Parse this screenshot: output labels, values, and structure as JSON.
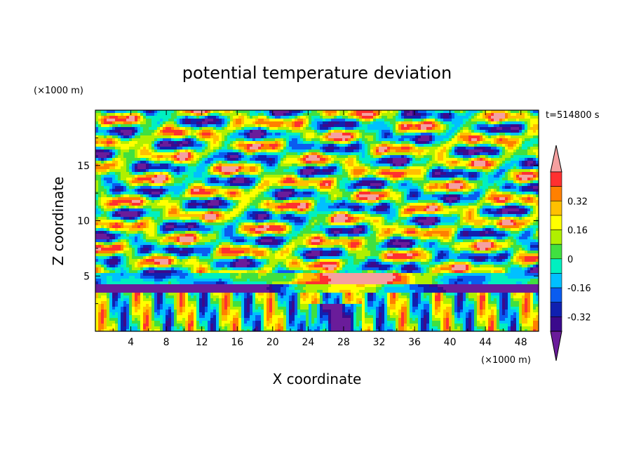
{
  "chart_data": {
    "type": "heatmap",
    "title": "potential temperature deviation",
    "time_label": "t=514800 s",
    "xlabel": "X coordinate",
    "ylabel": "Z coordinate",
    "x_unit": "(×1000 m)",
    "y_unit": "(×1000 m)",
    "xlim": [
      0,
      50
    ],
    "ylim": [
      0,
      20
    ],
    "x_ticks": [
      "4",
      "8",
      "12",
      "16",
      "20",
      "24",
      "28",
      "32",
      "36",
      "40",
      "44",
      "48"
    ],
    "y_ticks": [
      "5",
      "10",
      "15"
    ],
    "colorbar": {
      "colors": [
        "#6a1c9a",
        "#3b0a8c",
        "#1020b0",
        "#0a5cf0",
        "#00c0ff",
        "#00f0c0",
        "#40e040",
        "#b0f000",
        "#ffff00",
        "#ffc000",
        "#ff8000",
        "#ff3030",
        "#f5a0a0"
      ],
      "labels": [
        "0.32",
        "0.16",
        "0",
        "-0.16",
        "-0.32"
      ],
      "label_values": [
        0.32,
        0.16,
        0,
        -0.16,
        -0.32
      ]
    }
  }
}
